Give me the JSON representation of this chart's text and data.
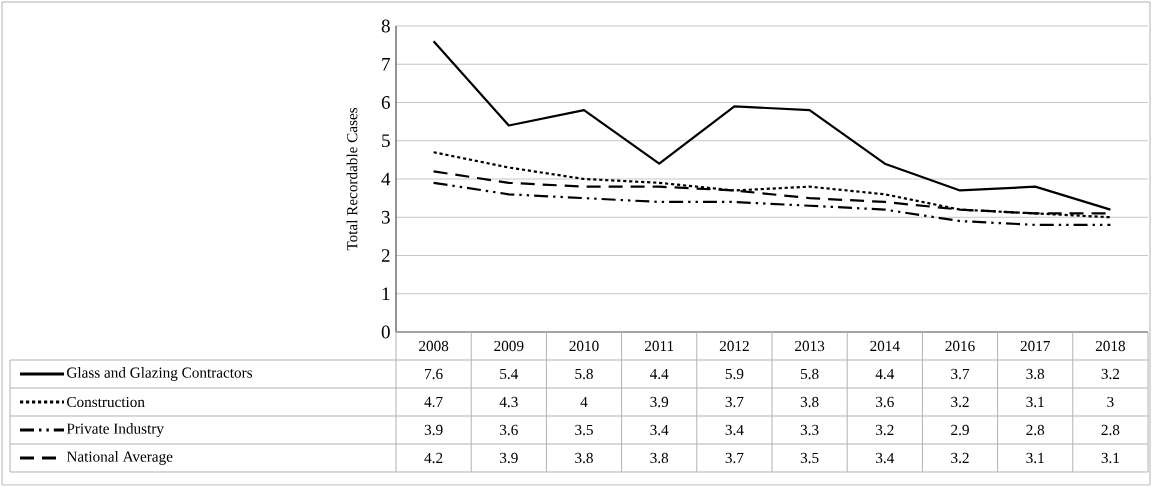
{
  "chart_data": {
    "type": "line",
    "ylabel": "Total Recordable Cases",
    "categories": [
      "2008",
      "2009",
      "2010",
      "2011",
      "2012",
      "2013",
      "2014",
      "2016",
      "2017",
      "2018"
    ],
    "series": [
      {
        "name": "Glass and Glazing Contractors",
        "color": "#000000",
        "line_style": "solid",
        "values": [
          7.6,
          5.4,
          5.8,
          4.4,
          5.9,
          5.8,
          4.4,
          3.7,
          3.8,
          3.2
        ]
      },
      {
        "name": "Construction",
        "color": "#000000",
        "line_style": "dotted",
        "values": [
          4.7,
          4.3,
          4,
          3.9,
          3.7,
          3.8,
          3.6,
          3.2,
          3.1,
          3
        ]
      },
      {
        "name": "Private Industry",
        "color": "#000000",
        "line_style": "dashdot",
        "values": [
          3.9,
          3.6,
          3.5,
          3.4,
          3.4,
          3.3,
          3.2,
          2.9,
          2.8,
          2.8
        ]
      },
      {
        "name": "National Average",
        "color": "#000000",
        "line_style": "dashed",
        "values": [
          4.2,
          3.9,
          3.8,
          3.8,
          3.7,
          3.5,
          3.4,
          3.2,
          3.1,
          3.1
        ]
      }
    ],
    "ylim": [
      0,
      8
    ],
    "yticks": [
      0,
      1,
      2,
      3,
      4,
      5,
      6,
      7,
      8
    ],
    "grid": "y",
    "legend": "bottom",
    "data_labels": true
  }
}
